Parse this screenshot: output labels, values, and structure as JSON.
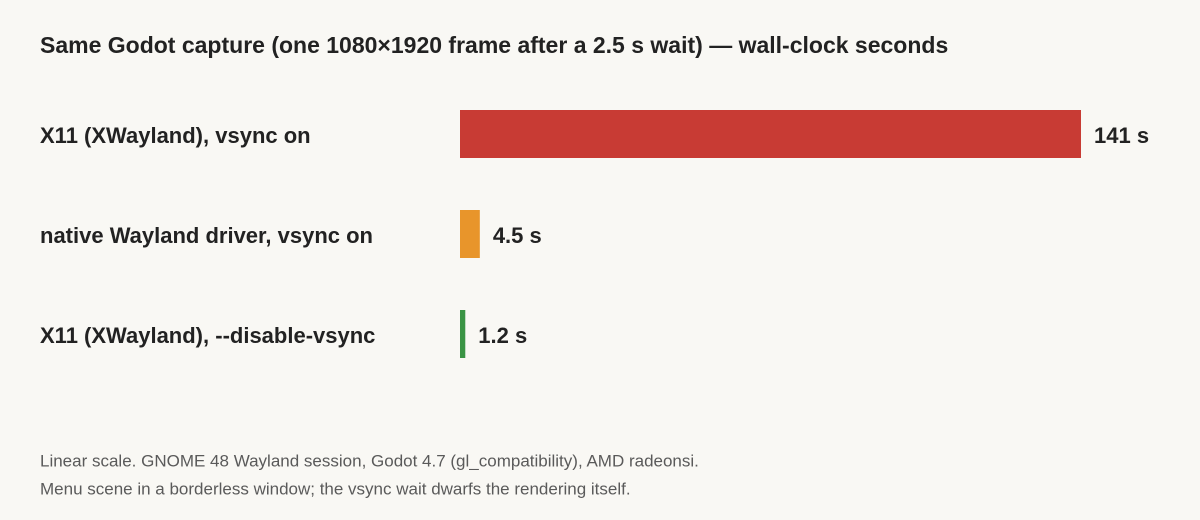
{
  "chart_data": {
    "type": "hbar",
    "title": "Same Godot capture (one 1080×1920 frame after a 2.5 s wait) — wall-clock seconds",
    "categories": [
      "X11 (XWayland), vsync on",
      "native Wayland driver, vsync on",
      "X11 (XWayland), --disable-vsync"
    ],
    "values": [
      141,
      4.5,
      1.2
    ],
    "value_labels": [
      "141 s",
      "4.5 s",
      "1.2 s"
    ],
    "colors": [
      "#c83b34",
      "#e8952b",
      "#3a9444"
    ],
    "xlim": [
      0,
      141
    ],
    "notes": [
      "Linear scale. GNOME 48 Wayland session, Godot 4.7 (gl_compatibility), AMD radeonsi.",
      "Menu scene in a borderless window; the vsync wait dwarfs the rendering itself."
    ]
  }
}
